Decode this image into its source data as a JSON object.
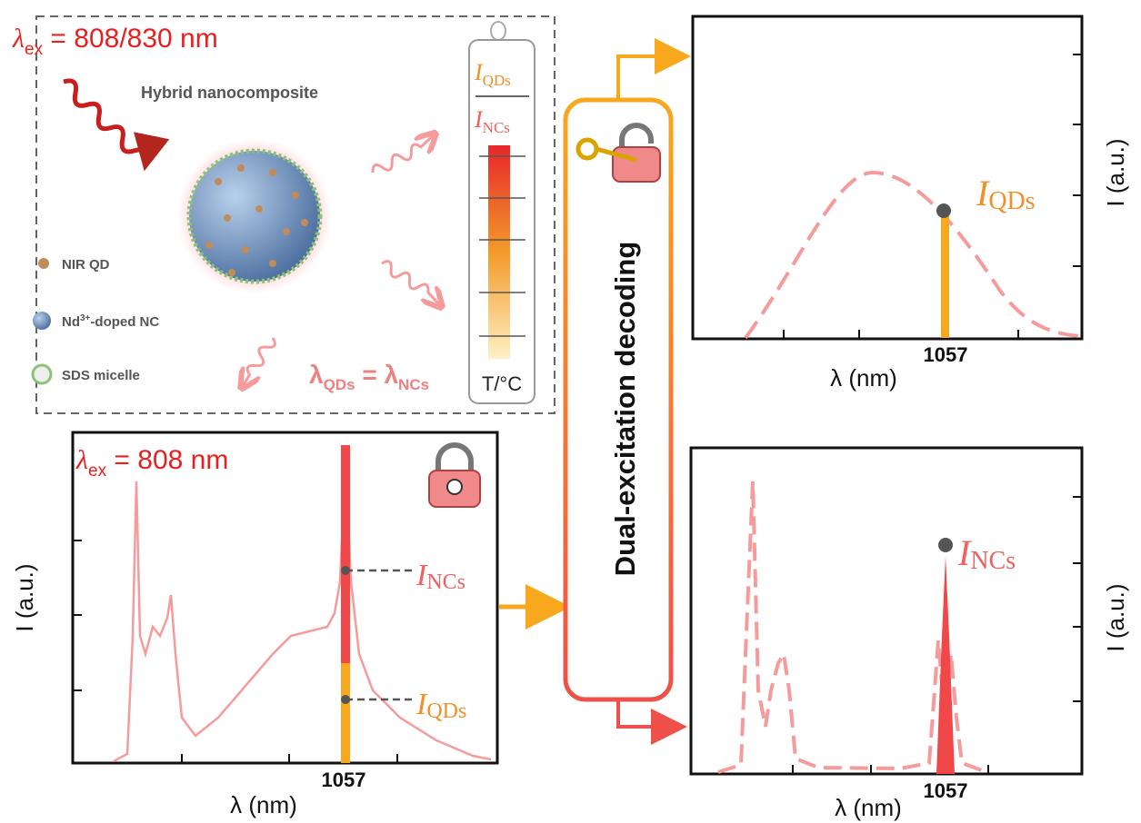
{
  "top_panel": {
    "excitation": {
      "symbol": "λ",
      "subscript": "ex",
      "text": " = 808/830 nm"
    },
    "title": "Hybrid nanocomposite",
    "legend": [
      {
        "label": "NIR QD"
      },
      {
        "label": "Nd",
        "superscript": "3+",
        "suffix": "-doped NC"
      },
      {
        "label": "SDS micelle"
      }
    ],
    "thermometer": {
      "numerator": {
        "symbol": "I",
        "subscript": "QDs"
      },
      "denominator": {
        "symbol": "I",
        "subscript": "NCs"
      },
      "axis_label": "T/°C"
    },
    "equality": {
      "left_symbol": "λ",
      "left_subscript": "QDs",
      "middle": " = ",
      "right_symbol": "λ",
      "right_subscript": "NCs"
    }
  },
  "spectrum_panel": {
    "excitation": {
      "symbol": "λ",
      "subscript": "ex",
      "text": " = 808 nm"
    },
    "y_label": "I (a.u.)",
    "x_label": "λ (nm)",
    "x_marker": "1057",
    "ncs_label": {
      "symbol": "I",
      "subscript": "NCs"
    },
    "qds_label": {
      "symbol": "I",
      "subscript": "QDs"
    }
  },
  "decoder": {
    "label": "Dual-excitation decoding"
  },
  "qds_panel": {
    "y_label": "I (a.u.)",
    "x_label": "λ (nm)",
    "x_marker": "1057",
    "peak_label": {
      "symbol": "I",
      "subscript": "QDs"
    }
  },
  "ncs_panel": {
    "y_label": "I (a.u.)",
    "x_label": "λ (nm)",
    "x_marker": "1057",
    "peak_label": {
      "symbol": "I",
      "subscript": "NCs"
    }
  }
}
